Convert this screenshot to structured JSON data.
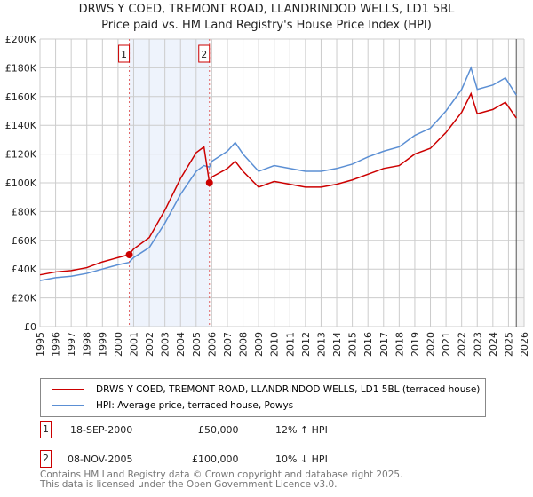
{
  "title": "DRWS Y COED, TREMONT ROAD, LLANDRINDOD WELLS, LD1 5BL",
  "subtitle": "Price paid vs. HM Land Registry's House Price Index (HPI)",
  "colors": {
    "property": "#cc0000",
    "hpi": "#5b8fd4",
    "shade": "#eef3fc"
  },
  "chart_data": {
    "type": "line",
    "title": "DRWS Y COED, TREMONT ROAD, LLANDRINDOD WELLS, LD1 5BL",
    "xlim": [
      1995,
      2026
    ],
    "ylim": [
      0,
      200000
    ],
    "yticks": [
      "£0",
      "£20K",
      "£40K",
      "£60K",
      "£80K",
      "£100K",
      "£120K",
      "£140K",
      "£160K",
      "£180K",
      "£200K"
    ],
    "xticks": [
      "1995",
      "1996",
      "1997",
      "1998",
      "1999",
      "2000",
      "2001",
      "2002",
      "2003",
      "2004",
      "2005",
      "2006",
      "2007",
      "2008",
      "2009",
      "2010",
      "2011",
      "2012",
      "2013",
      "2014",
      "2015",
      "2016",
      "2017",
      "2018",
      "2019",
      "2020",
      "2021",
      "2022",
      "2023",
      "2024",
      "2025",
      "2026"
    ],
    "series": [
      {
        "name": "DRWS Y COED, TREMONT ROAD, LLANDRINDOD WELLS, LD1 5BL (terraced house)",
        "x": [
          1995,
          1996,
          1997,
          1998,
          1999,
          2000,
          2000.7,
          2001,
          2002,
          2003,
          2004,
          2005,
          2005.5,
          2005.85,
          2006,
          2007,
          2007.5,
          2008,
          2009,
          2010,
          2011,
          2012,
          2013,
          2014,
          2015,
          2016,
          2017,
          2018,
          2019,
          2020,
          2021,
          2022,
          2022.6,
          2023,
          2024,
          2024.8,
          2025.5
        ],
        "values": [
          36000,
          38000,
          39000,
          41000,
          45000,
          48000,
          50000,
          54000,
          62000,
          81000,
          103000,
          121000,
          125000,
          100000,
          104000,
          110000,
          115000,
          108000,
          97000,
          101000,
          99000,
          97000,
          97000,
          99000,
          102000,
          106000,
          110000,
          112000,
          120000,
          124000,
          135000,
          149000,
          162000,
          148000,
          151000,
          156000,
          145000
        ]
      },
      {
        "name": "HPI: Average price, terraced house, Powys",
        "x": [
          1995,
          1996,
          1997,
          1998,
          1999,
          2000,
          2000.7,
          2001,
          2002,
          2003,
          2004,
          2005,
          2005.5,
          2005.85,
          2006,
          2007,
          2007.5,
          2008,
          2009,
          2010,
          2011,
          2012,
          2013,
          2014,
          2015,
          2016,
          2017,
          2018,
          2019,
          2020,
          2021,
          2022,
          2022.6,
          2023,
          2024,
          2024.8,
          2025.5
        ],
        "values": [
          32000,
          34000,
          35000,
          37000,
          40000,
          43000,
          44600,
          48000,
          55000,
          72000,
          92000,
          108000,
          112000,
          111000,
          115000,
          122000,
          128000,
          120000,
          108000,
          112000,
          110000,
          108000,
          108000,
          110000,
          113000,
          118000,
          122000,
          125000,
          133000,
          138000,
          150000,
          165000,
          180000,
          165000,
          168000,
          173000,
          161000
        ]
      }
    ],
    "sales": [
      {
        "label": "1",
        "x": 2000.72,
        "value": 50000
      },
      {
        "label": "2",
        "x": 2005.85,
        "value": 100000
      }
    ]
  },
  "legend": {
    "property": "DRWS Y COED, TREMONT ROAD, LLANDRINDOD WELLS, LD1 5BL (terraced house)",
    "hpi": "HPI: Average price, terraced house, Powys"
  },
  "transactions": [
    {
      "num": "1",
      "date": "18-SEP-2000",
      "price": "£50,000",
      "hpi": "12% ↑ HPI"
    },
    {
      "num": "2",
      "date": "08-NOV-2005",
      "price": "£100,000",
      "hpi": "10% ↓ HPI"
    }
  ],
  "footer": [
    "Contains HM Land Registry data © Crown copyright and database right 2025.",
    "This data is licensed under the Open Government Licence v3.0."
  ]
}
